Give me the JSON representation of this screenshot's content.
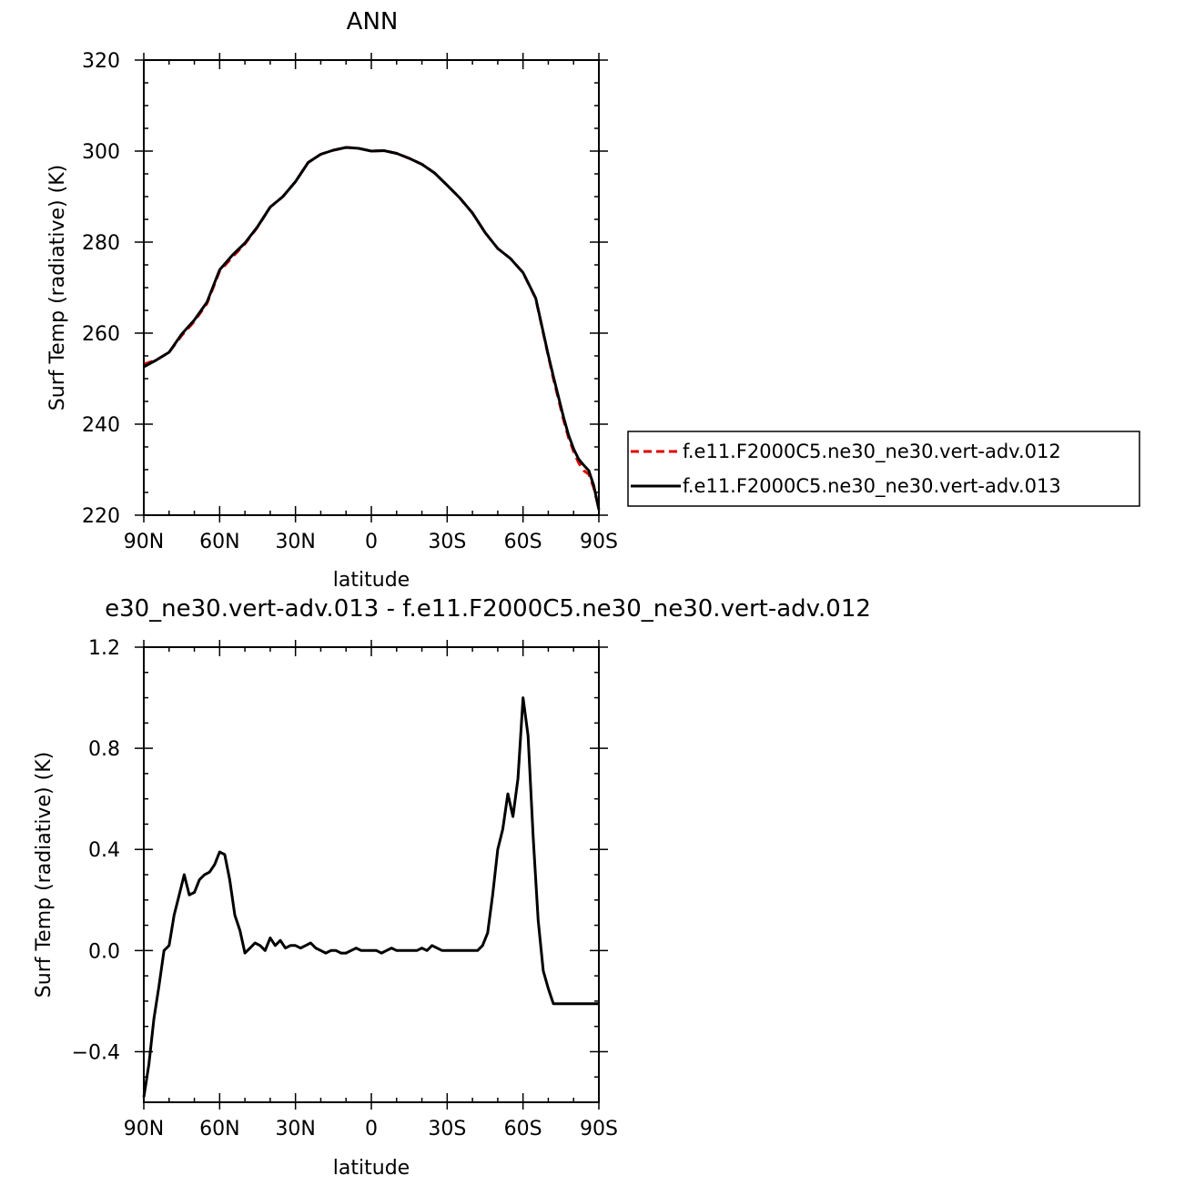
{
  "chart_data": [
    {
      "type": "line",
      "title": "ANN",
      "xlabel": "latitude",
      "ylabel": "Surf Temp (radiative) (K)",
      "xlim": [
        90,
        -90
      ],
      "ylim": [
        220,
        320
      ],
      "xticks": [
        {
          "value": 90,
          "label": "90N"
        },
        {
          "value": 60,
          "label": "60N"
        },
        {
          "value": 30,
          "label": "30N"
        },
        {
          "value": 0,
          "label": "0"
        },
        {
          "value": -30,
          "label": "30S"
        },
        {
          "value": -60,
          "label": "60S"
        },
        {
          "value": -90,
          "label": "90S"
        }
      ],
      "yticks": [
        {
          "value": 220,
          "label": "220"
        },
        {
          "value": 240,
          "label": "240"
        },
        {
          "value": 260,
          "label": "260"
        },
        {
          "value": 280,
          "label": "280"
        },
        {
          "value": 300,
          "label": "300"
        },
        {
          "value": 320,
          "label": "320"
        }
      ],
      "legend": {
        "placement": "right"
      },
      "x": [
        90,
        85,
        80,
        75,
        70,
        65,
        60,
        55,
        50,
        45,
        40,
        35,
        30,
        25,
        20,
        15,
        10,
        5,
        0,
        -5,
        -10,
        -15,
        -20,
        -25,
        -30,
        -35,
        -40,
        -45,
        -50,
        -55,
        -60,
        -65,
        -70,
        -72,
        -74,
        -76,
        -78,
        -80,
        -82,
        -84,
        -86,
        -88,
        -90
      ],
      "series": [
        {
          "name": "f.e11.F2000C5.ne30_ne30.vert-adv.012",
          "color": "#e00000",
          "dash": "dashed",
          "values": [
            253.2,
            254.1,
            255.8,
            259.5,
            262.6,
            266.5,
            273.6,
            276.7,
            279.6,
            283.3,
            287.7,
            290.0,
            293.3,
            297.5,
            299.3,
            300.2,
            300.8,
            300.6,
            300.0,
            300.1,
            299.5,
            298.4,
            297.1,
            295.2,
            292.5,
            289.7,
            286.4,
            282.1,
            278.6,
            276.4,
            273.3,
            267.6,
            255.0,
            250.0,
            245.5,
            241.0,
            237.0,
            234.0,
            231.5,
            229.8,
            229.0,
            226.0,
            221.4
          ]
        },
        {
          "name": "f.e11.F2000C5.ne30_ne30.vert-adv.013",
          "color": "#000000",
          "dash": "solid",
          "values": [
            252.6,
            254.1,
            255.8,
            259.8,
            262.9,
            266.8,
            273.9,
            277.1,
            279.8,
            283.4,
            287.7,
            290.0,
            293.3,
            297.5,
            299.3,
            300.2,
            300.8,
            300.6,
            300.0,
            300.1,
            299.5,
            298.4,
            297.1,
            295.2,
            292.5,
            289.7,
            286.4,
            282.1,
            278.6,
            276.4,
            273.3,
            267.7,
            255.2,
            250.5,
            246.0,
            241.6,
            237.6,
            234.6,
            232.3,
            231.0,
            229.8,
            226.5,
            221.2
          ]
        }
      ]
    },
    {
      "type": "line",
      "title": "e30_ne30.vert-adv.013 - f.e11.F2000C5.ne30_ne30.vert-adv.012",
      "xlabel": "latitude",
      "ylabel": "Surf Temp (radiative) (K)",
      "xlim": [
        90,
        -90
      ],
      "ylim": [
        -0.6,
        1.2
      ],
      "xticks": [
        {
          "value": 90,
          "label": "90N"
        },
        {
          "value": 60,
          "label": "60N"
        },
        {
          "value": 30,
          "label": "30N"
        },
        {
          "value": 0,
          "label": "0"
        },
        {
          "value": -30,
          "label": "30S"
        },
        {
          "value": -60,
          "label": "60S"
        },
        {
          "value": -90,
          "label": "90S"
        }
      ],
      "yticks": [
        {
          "value": -0.4,
          "label": "−0.4"
        },
        {
          "value": 0.0,
          "label": "0.0"
        },
        {
          "value": 0.4,
          "label": "0.4"
        },
        {
          "value": 0.8,
          "label": "0.8"
        },
        {
          "value": 1.2,
          "label": "1.2"
        }
      ],
      "x": [
        90,
        88,
        86,
        84,
        82,
        80,
        78,
        76,
        74,
        72,
        70,
        68,
        66,
        64,
        62,
        60,
        58,
        56,
        54,
        52,
        50,
        48,
        46,
        44,
        42,
        40,
        38,
        36,
        34,
        32,
        30,
        28,
        26,
        24,
        22,
        20,
        18,
        16,
        14,
        12,
        10,
        8,
        6,
        4,
        2,
        0,
        -2,
        -4,
        -6,
        -8,
        -10,
        -12,
        -14,
        -16,
        -18,
        -20,
        -22,
        -24,
        -26,
        -28,
        -30,
        -32,
        -34,
        -36,
        -38,
        -40,
        -42,
        -44,
        -46,
        -48,
        -50,
        -52,
        -54,
        -56,
        -58,
        -60,
        -62,
        -64,
        -66,
        -68,
        -70,
        -72,
        -74,
        -76,
        -78,
        -80,
        -82,
        -84,
        -86,
        -88,
        -90
      ],
      "series": [
        {
          "name": "",
          "color": "#000000",
          "dash": "solid",
          "values": [
            -0.58,
            -0.45,
            -0.27,
            -0.14,
            0.0,
            0.02,
            0.14,
            0.22,
            0.3,
            0.22,
            0.23,
            0.28,
            0.3,
            0.31,
            0.34,
            0.39,
            0.38,
            0.28,
            0.14,
            0.08,
            -0.01,
            0.01,
            0.03,
            0.02,
            0.0,
            0.05,
            0.02,
            0.04,
            0.01,
            0.02,
            0.02,
            0.01,
            0.02,
            0.03,
            0.01,
            0.0,
            -0.01,
            0.0,
            0.0,
            -0.01,
            -0.01,
            0.0,
            0.01,
            0.0,
            0.0,
            0.0,
            0.0,
            -0.01,
            0.0,
            0.01,
            0.0,
            0.0,
            0.0,
            0.0,
            0.0,
            0.01,
            0.0,
            0.02,
            0.01,
            0.0,
            0.0,
            0.0,
            0.0,
            0.0,
            0.0,
            0.0,
            0.0,
            0.02,
            0.07,
            0.22,
            0.4,
            0.48,
            0.62,
            0.53,
            0.68,
            1.0,
            0.85,
            0.45,
            0.12,
            -0.08,
            -0.15,
            -0.21,
            -0.21,
            -0.21,
            -0.21,
            -0.21,
            -0.21,
            -0.21,
            -0.21,
            -0.21,
            -0.21
          ]
        }
      ]
    }
  ]
}
